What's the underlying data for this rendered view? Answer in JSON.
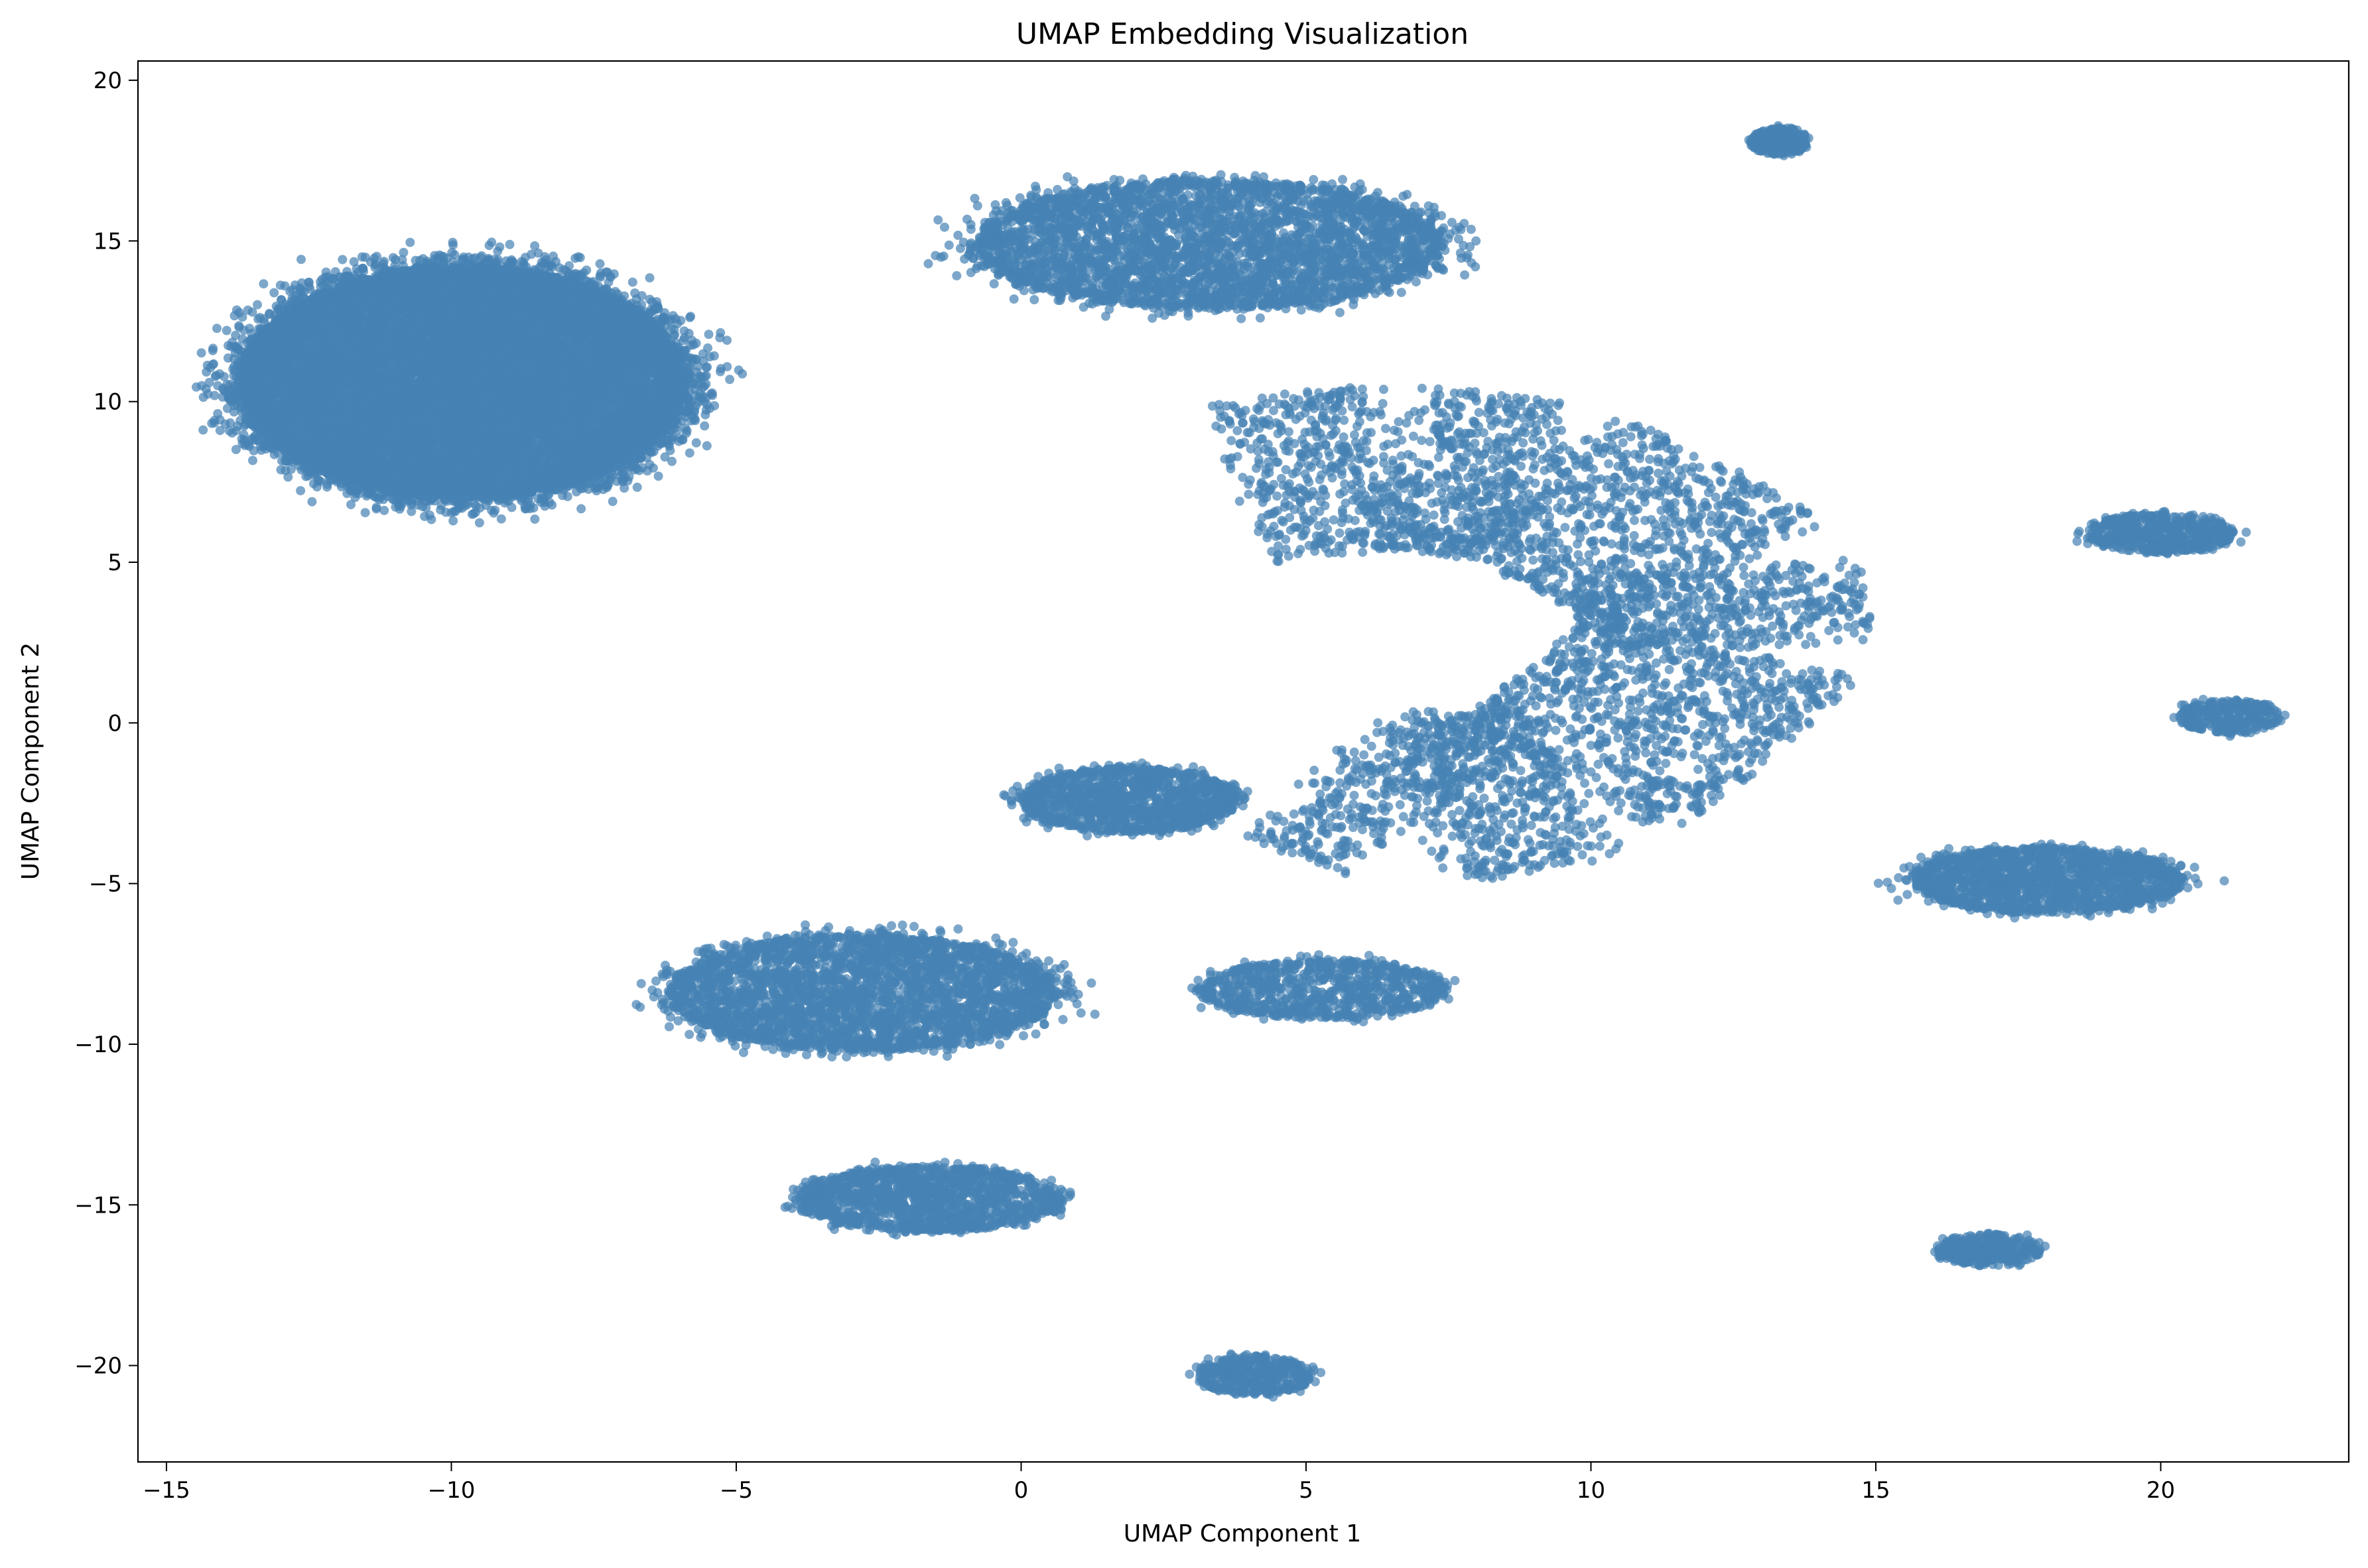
{
  "chart_data": {
    "type": "scatter",
    "title": "UMAP Embedding Visualization",
    "xlabel": "UMAP Component 1",
    "ylabel": "UMAP Component 2",
    "xlim": [
      -15.5,
      23.3
    ],
    "ylim": [
      -23.0,
      20.6
    ],
    "xticks": [
      -15,
      -10,
      -5,
      0,
      5,
      10,
      15,
      20
    ],
    "yticks": [
      -20,
      -15,
      -10,
      -5,
      0,
      5,
      10,
      15,
      20
    ],
    "grid": false,
    "legend": "none",
    "point_color": "#4682b4",
    "point_opacity": 0.7,
    "clusters": [
      {
        "center": [
          -9.8,
          10.6
        ],
        "spread": [
          3.9,
          3.6
        ],
        "count": 16000
      },
      {
        "center": [
          3.3,
          14.9
        ],
        "spread": [
          4.1,
          2.0
        ],
        "count": 3500
      },
      {
        "center": [
          13.3,
          18.1
        ],
        "spread": [
          0.5,
          0.4
        ],
        "count": 250
      },
      {
        "center": [
          20.0,
          5.9
        ],
        "spread": [
          1.3,
          0.6
        ],
        "count": 500
      },
      {
        "center": [
          21.2,
          0.2
        ],
        "spread": [
          0.9,
          0.5
        ],
        "count": 300
      },
      {
        "center": [
          1.9,
          -2.4
        ],
        "spread": [
          1.9,
          1.0
        ],
        "count": 1200
      },
      {
        "center": [
          -2.8,
          -8.4
        ],
        "spread": [
          3.4,
          1.8
        ],
        "count": 3000
      },
      {
        "center": [
          5.3,
          -8.3
        ],
        "spread": [
          2.2,
          0.9
        ],
        "count": 800
      },
      {
        "center": [
          18.0,
          -4.9
        ],
        "spread": [
          2.4,
          1.0
        ],
        "count": 1500
      },
      {
        "center": [
          -1.6,
          -14.8
        ],
        "spread": [
          2.3,
          1.0
        ],
        "count": 1300
      },
      {
        "center": [
          17.0,
          -16.4
        ],
        "spread": [
          0.9,
          0.5
        ],
        "count": 300
      },
      {
        "center": [
          4.1,
          -20.3
        ],
        "spread": [
          1.0,
          0.6
        ],
        "count": 400
      }
    ],
    "curved_cluster": {
      "count": 4000,
      "path": [
        [
          4.0,
          7.5
        ],
        [
          6.5,
          8.0
        ],
        [
          9.0,
          7.5
        ],
        [
          10.8,
          6.0
        ],
        [
          12.2,
          4.6
        ],
        [
          12.4,
          2.5
        ],
        [
          11.2,
          0.5
        ],
        [
          9.5,
          -1.8
        ],
        [
          7.0,
          -2.6
        ],
        [
          5.5,
          -1.5
        ]
      ],
      "spread": 1.6
    }
  }
}
